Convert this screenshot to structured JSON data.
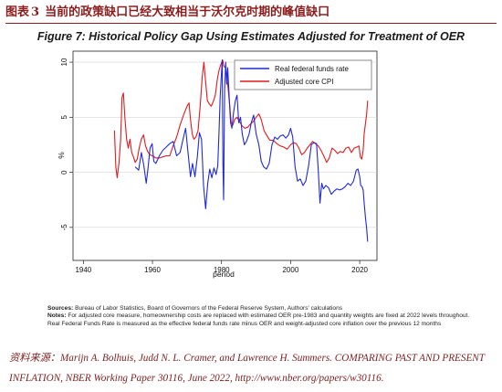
{
  "header": {
    "label": "图表",
    "number": "3",
    "title": "当前的政策缺口已经大致相当于沃尔克时期的峰值缺口"
  },
  "chart_data": {
    "type": "line",
    "title": "Figure 7: Historical Policy Gap Using Estimates Adjusted for Treatment of OER",
    "xlabel": "period",
    "ylabel": "%",
    "xlim": [
      1937,
      2025
    ],
    "ylim": [
      -8,
      11
    ],
    "xticks": [
      "1940",
      "1960",
      "1980",
      "2000",
      "2020"
    ],
    "xtick_values": [
      1940,
      1960,
      1980,
      2000,
      2020
    ],
    "yticks": [
      "-5",
      "0",
      "5",
      "10"
    ],
    "ytick_values": [
      -5,
      0,
      5,
      10
    ],
    "grid": true,
    "legend_position": "top-right",
    "series": [
      {
        "name": "Real federal funds rate",
        "color": "#1f2ad6",
        "points": [
          [
            1955.0,
            0.5
          ],
          [
            1956.0,
            0.2
          ],
          [
            1956.8,
            1.8
          ],
          [
            1957.5,
            0.6
          ],
          [
            1958.2,
            -1.0
          ],
          [
            1958.7,
            0.3
          ],
          [
            1959.3,
            2.2
          ],
          [
            1959.9,
            2.6
          ],
          [
            1960.4,
            1.0
          ],
          [
            1961.0,
            0.8
          ],
          [
            1962.0,
            1.5
          ],
          [
            1963.0,
            2.0
          ],
          [
            1964.0,
            2.3
          ],
          [
            1965.0,
            2.6
          ],
          [
            1966.0,
            2.8
          ],
          [
            1967.0,
            1.5
          ],
          [
            1968.0,
            1.8
          ],
          [
            1969.0,
            3.2
          ],
          [
            1969.6,
            4.0
          ],
          [
            1970.3,
            1.8
          ],
          [
            1971.0,
            -0.4
          ],
          [
            1971.6,
            0.8
          ],
          [
            1972.3,
            -0.4
          ],
          [
            1973.0,
            1.4
          ],
          [
            1973.6,
            3.6
          ],
          [
            1974.2,
            3.0
          ],
          [
            1974.8,
            -1.2
          ],
          [
            1975.4,
            -3.3
          ],
          [
            1976.0,
            -1.0
          ],
          [
            1976.6,
            0.3
          ],
          [
            1977.2,
            -0.5
          ],
          [
            1977.8,
            0.4
          ],
          [
            1978.4,
            -0.2
          ],
          [
            1978.9,
            0.6
          ],
          [
            1979.3,
            4.0
          ],
          [
            1979.6,
            6.8
          ],
          [
            1979.9,
            8.5
          ],
          [
            1980.2,
            10.2
          ],
          [
            1980.4,
            1.0
          ],
          [
            1980.6,
            -2.5
          ],
          [
            1980.9,
            7.5
          ],
          [
            1981.2,
            10.0
          ],
          [
            1981.5,
            8.0
          ],
          [
            1981.8,
            9.5
          ],
          [
            1982.2,
            7.0
          ],
          [
            1982.6,
            4.5
          ],
          [
            1983.0,
            4.0
          ],
          [
            1983.5,
            5.5
          ],
          [
            1984.0,
            6.5
          ],
          [
            1984.5,
            7.0
          ],
          [
            1985.0,
            4.5
          ],
          [
            1985.5,
            5.0
          ],
          [
            1986.0,
            3.5
          ],
          [
            1986.6,
            2.5
          ],
          [
            1987.2,
            2.8
          ],
          [
            1988.0,
            3.5
          ],
          [
            1988.6,
            4.5
          ],
          [
            1989.3,
            5.2
          ],
          [
            1990.0,
            3.5
          ],
          [
            1990.8,
            2.5
          ],
          [
            1991.5,
            1.0
          ],
          [
            1992.2,
            0.5
          ],
          [
            1993.0,
            0.3
          ],
          [
            1993.8,
            0.8
          ],
          [
            1994.6,
            2.5
          ],
          [
            1995.4,
            3.2
          ],
          [
            1996.2,
            3.0
          ],
          [
            1997.0,
            3.3
          ],
          [
            1997.8,
            3.4
          ],
          [
            1998.6,
            3.1
          ],
          [
            1999.4,
            3.4
          ],
          [
            2000.0,
            4.0
          ],
          [
            2000.6,
            3.2
          ],
          [
            2001.3,
            0.5
          ],
          [
            2002.0,
            -0.8
          ],
          [
            2002.8,
            -0.6
          ],
          [
            2003.6,
            -1.2
          ],
          [
            2004.4,
            -0.8
          ],
          [
            2005.2,
            0.6
          ],
          [
            2006.0,
            2.5
          ],
          [
            2006.8,
            2.7
          ],
          [
            2007.5,
            2.6
          ],
          [
            2008.0,
            0.2
          ],
          [
            2008.5,
            -2.8
          ],
          [
            2009.0,
            -1.0
          ],
          [
            2009.5,
            -1.5
          ],
          [
            2010.2,
            -1.2
          ],
          [
            2011.0,
            -1.4
          ],
          [
            2011.8,
            -2.0
          ],
          [
            2012.6,
            -1.7
          ],
          [
            2013.4,
            -1.5
          ],
          [
            2014.2,
            -1.6
          ],
          [
            2015.0,
            -1.5
          ],
          [
            2015.8,
            -1.3
          ],
          [
            2016.6,
            -1.0
          ],
          [
            2017.4,
            -1.2
          ],
          [
            2018.2,
            -0.8
          ],
          [
            2019.0,
            0.2
          ],
          [
            2019.5,
            0.3
          ],
          [
            2020.0,
            -0.4
          ],
          [
            2020.3,
            -1.2
          ],
          [
            2020.7,
            -1.3
          ],
          [
            2021.0,
            -1.6
          ],
          [
            2021.3,
            -2.8
          ],
          [
            2021.7,
            -4.2
          ],
          [
            2022.0,
            -5.0
          ],
          [
            2022.3,
            -6.3
          ]
        ]
      },
      {
        "name": "Adjusted core CPI",
        "color": "#e41a1c",
        "points": [
          [
            1949.0,
            3.8
          ],
          [
            1949.4,
            0.5
          ],
          [
            1949.8,
            -0.5
          ],
          [
            1950.3,
            0.8
          ],
          [
            1950.8,
            3.0
          ],
          [
            1951.2,
            6.8
          ],
          [
            1951.6,
            7.2
          ],
          [
            1952.0,
            5.0
          ],
          [
            1952.5,
            3.0
          ],
          [
            1953.0,
            2.2
          ],
          [
            1953.5,
            3.0
          ],
          [
            1954.0,
            1.8
          ],
          [
            1954.5,
            1.4
          ],
          [
            1955.0,
            0.9
          ],
          [
            1955.6,
            1.2
          ],
          [
            1956.2,
            2.3
          ],
          [
            1956.8,
            3.0
          ],
          [
            1957.4,
            3.4
          ],
          [
            1958.0,
            2.4
          ],
          [
            1958.6,
            1.9
          ],
          [
            1959.2,
            1.6
          ],
          [
            1960.0,
            1.5
          ],
          [
            1961.0,
            1.3
          ],
          [
            1962.0,
            1.3
          ],
          [
            1963.0,
            1.4
          ],
          [
            1964.0,
            1.5
          ],
          [
            1965.0,
            1.5
          ],
          [
            1966.0,
            2.4
          ],
          [
            1967.0,
            3.2
          ],
          [
            1968.0,
            4.3
          ],
          [
            1969.0,
            5.2
          ],
          [
            1970.0,
            6.0
          ],
          [
            1970.6,
            6.3
          ],
          [
            1971.0,
            4.8
          ],
          [
            1971.5,
            3.5
          ],
          [
            1972.0,
            3.0
          ],
          [
            1972.6,
            3.2
          ],
          [
            1973.2,
            3.8
          ],
          [
            1973.8,
            6.0
          ],
          [
            1974.4,
            8.6
          ],
          [
            1974.9,
            10.0
          ],
          [
            1975.4,
            8.2
          ],
          [
            1975.9,
            6.5
          ],
          [
            1976.5,
            6.2
          ],
          [
            1977.0,
            6.0
          ],
          [
            1977.6,
            6.4
          ],
          [
            1978.2,
            7.0
          ],
          [
            1978.8,
            8.5
          ],
          [
            1979.3,
            9.3
          ],
          [
            1979.8,
            9.8
          ],
          [
            1980.3,
            10.2
          ],
          [
            1980.7,
            9.6
          ],
          [
            1981.2,
            9.5
          ],
          [
            1981.8,
            8.0
          ],
          [
            1982.3,
            6.3
          ],
          [
            1982.8,
            4.5
          ],
          [
            1983.3,
            4.3
          ],
          [
            1983.8,
            4.8
          ],
          [
            1984.5,
            5.0
          ],
          [
            1985.2,
            4.6
          ],
          [
            1986.0,
            4.2
          ],
          [
            1986.8,
            4.0
          ],
          [
            1987.6,
            4.1
          ],
          [
            1988.4,
            4.4
          ],
          [
            1989.2,
            4.6
          ],
          [
            1990.0,
            5.0
          ],
          [
            1990.8,
            5.3
          ],
          [
            1991.5,
            4.8
          ],
          [
            1992.3,
            3.8
          ],
          [
            1993.0,
            3.4
          ],
          [
            1994.0,
            2.9
          ],
          [
            1995.0,
            2.9
          ],
          [
            1996.0,
            2.6
          ],
          [
            1997.0,
            2.4
          ],
          [
            1998.0,
            2.3
          ],
          [
            1999.0,
            2.1
          ],
          [
            2000.0,
            2.5
          ],
          [
            2000.8,
            2.7
          ],
          [
            2001.6,
            2.6
          ],
          [
            2002.4,
            2.2
          ],
          [
            2003.2,
            1.6
          ],
          [
            2004.0,
            1.8
          ],
          [
            2004.8,
            2.2
          ],
          [
            2005.6,
            2.5
          ],
          [
            2006.4,
            2.8
          ],
          [
            2007.2,
            2.6
          ],
          [
            2008.0,
            2.4
          ],
          [
            2008.8,
            2.0
          ],
          [
            2009.6,
            1.5
          ],
          [
            2010.4,
            0.9
          ],
          [
            2011.2,
            1.3
          ],
          [
            2012.0,
            2.2
          ],
          [
            2012.8,
            2.0
          ],
          [
            2013.6,
            1.7
          ],
          [
            2014.4,
            1.9
          ],
          [
            2015.2,
            1.8
          ],
          [
            2016.0,
            2.2
          ],
          [
            2016.8,
            2.3
          ],
          [
            2017.6,
            1.8
          ],
          [
            2018.4,
            2.2
          ],
          [
            2019.2,
            2.3
          ],
          [
            2019.8,
            2.4
          ],
          [
            2020.2,
            1.4
          ],
          [
            2020.6,
            1.2
          ],
          [
            2021.0,
            2.0
          ],
          [
            2021.3,
            3.5
          ],
          [
            2021.7,
            4.5
          ],
          [
            2022.0,
            5.2
          ],
          [
            2022.3,
            6.5
          ]
        ]
      }
    ]
  },
  "notes": {
    "sources_label": "Sources:",
    "sources_text": "Bureau of Labor Statistics, Board of Governors of the Federal Reserve System, Authors' calculations",
    "notes_label": "Notes:",
    "notes_text": "For adjusted core measure, homeownership costs are replaced with estimated OER pre-1983 and quantity weights are fixed at 2022 levels throughout. Real Federal Funds Rate is measured as the effective federal funds rate minus OER and weight-adjusted core inflation over the previous 12 months"
  },
  "source": {
    "prefix": "资料来源：",
    "text": "Marijn A. Bolhuis, Judd N. L. Cramer, and Lawrence H. Summers. COMPARING PAST AND PRESENT INFLATION, NBER Working Paper 30116, June 2022, http://www.nber.org/papers/w30116."
  }
}
